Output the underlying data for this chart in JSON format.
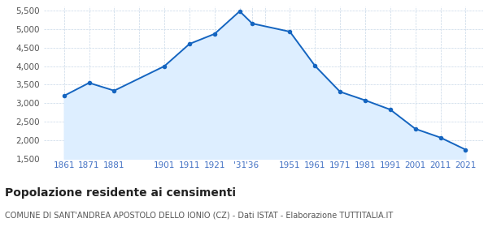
{
  "years": [
    1861,
    1871,
    1881,
    1901,
    1911,
    1921,
    1931,
    1936,
    1951,
    1961,
    1971,
    1981,
    1991,
    2001,
    2011,
    2021
  ],
  "population": [
    3200,
    3550,
    3340,
    4000,
    4600,
    4870,
    5480,
    5150,
    4930,
    4010,
    3310,
    3080,
    2830,
    2310,
    2075,
    1750
  ],
  "ylim": [
    1500,
    5600
  ],
  "yticks": [
    1500,
    2000,
    2500,
    3000,
    3500,
    4000,
    4500,
    5000,
    5500
  ],
  "x_positions": [
    1861,
    1871,
    1881,
    1891,
    1901,
    1911,
    1921,
    1931,
    1936,
    1941,
    1951,
    1961,
    1971,
    1981,
    1991,
    2001,
    2011,
    2021
  ],
  "x_labels": [
    "1861",
    "1871",
    "1881",
    "",
    "1901",
    "1911",
    "1921",
    "'31",
    "'36",
    "",
    "1951",
    "1961",
    "1971",
    "1981",
    "1991",
    "2001",
    "2011",
    "2021"
  ],
  "xlim": [
    1853,
    2028
  ],
  "line_color": "#1565c0",
  "fill_color": "#ddeeff",
  "marker_color": "#1565c0",
  "background_color": "#ffffff",
  "grid_color": "#c8d8e8",
  "x_label_color": "#4472c4",
  "y_label_color": "#555555",
  "title": "Popolazione residente ai censimenti",
  "subtitle": "COMUNE DI SANT'ANDREA APOSTOLO DELLO IONIO (CZ) - Dati ISTAT - Elaborazione TUTTITALIA.IT",
  "title_fontsize": 10,
  "subtitle_fontsize": 7,
  "tick_fontsize": 7.5
}
